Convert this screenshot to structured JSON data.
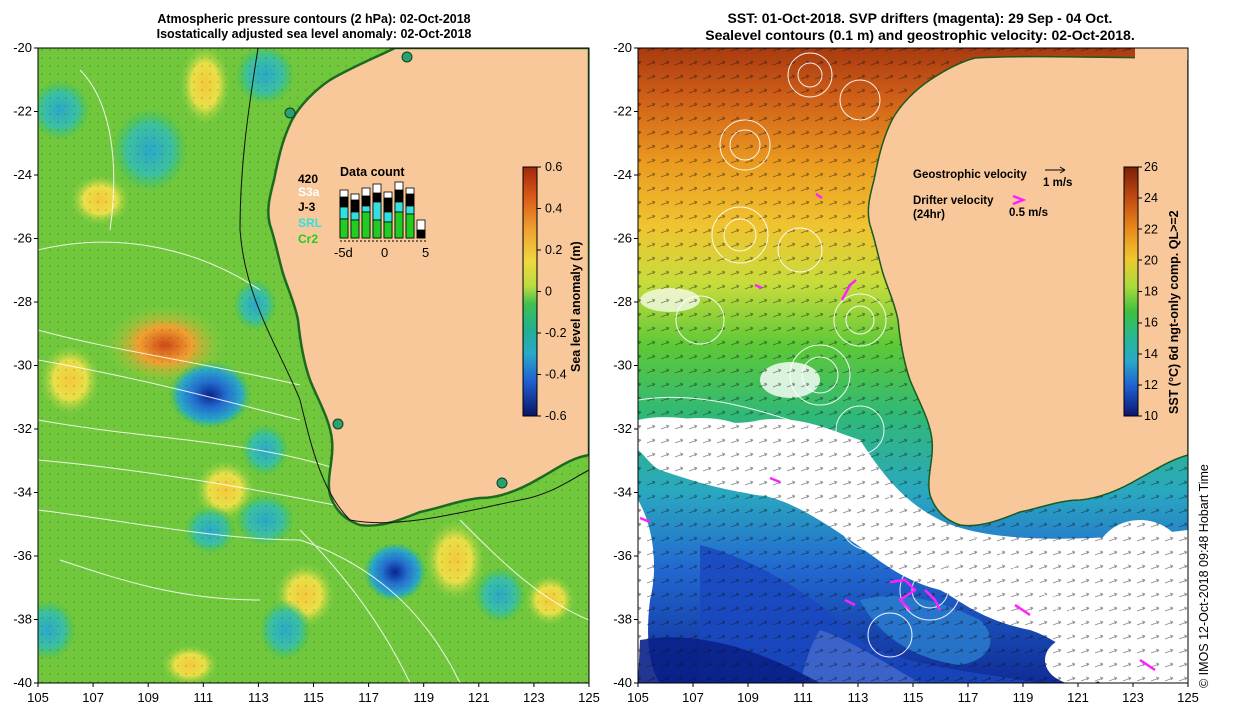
{
  "left_panel": {
    "title_line1": "Atmospheric pressure contours (2 hPa): 02-Oct-2018",
    "title_line2": "Isostatically adjusted sea level anomaly: 02-Oct-2018",
    "colorbar_label": "Sea level anomaly (m)",
    "colorbar_ticks": [
      "0.6",
      "0.4",
      "0.2",
      "0",
      "-0.2",
      "-0.4",
      "-0.6"
    ],
    "colorbar_colors": [
      "#b03010",
      "#e07a20",
      "#f2b33a",
      "#f6e24a",
      "#8fd040",
      "#33c060",
      "#1fb090",
      "#2aa8c8",
      "#2470d0",
      "#1838a8",
      "#0a1870"
    ],
    "data_count": {
      "title": "Data count",
      "legend": [
        {
          "label": "420",
          "color": "#000000"
        },
        {
          "label": "S3a",
          "color": "#ffffff"
        },
        {
          "label": "J-3",
          "color": "#000000"
        },
        {
          "label": "SRL",
          "color": "#33e0e0"
        },
        {
          "label": "Cr2",
          "color": "#22cc22"
        }
      ],
      "axis_ticks": [
        "-5d",
        "0",
        "5"
      ]
    }
  },
  "right_panel": {
    "title_line1": "SST: 01-Oct-2018. SVP drifters (magenta): 29 Sep - 04 Oct.",
    "title_line2": "Sealevel contours (0.1 m) and geostrophic velocity: 02-Oct-2018.",
    "legend_geo": "Geostrophic velocity",
    "legend_geo_scale": "1 m/s",
    "legend_drifter_line1": "Drifter velocity",
    "legend_drifter_line2": "(24hr)",
    "legend_drifter_scale": "0.5 m/s",
    "colorbar_label": "SST (°C) 6d ngt-only comp. QL>=2",
    "colorbar_ticks": [
      "26",
      "24",
      "22",
      "20",
      "18",
      "16",
      "14",
      "12",
      "10"
    ],
    "colorbar_colors": [
      "#8a2a08",
      "#c04810",
      "#e07818",
      "#f0a020",
      "#f2d030",
      "#c8e040",
      "#60cc30",
      "#30b870",
      "#2aa8c0",
      "#2270d0",
      "#1238a8",
      "#0a1878"
    ]
  },
  "map_axes": {
    "lat_ticks": [
      "-20",
      "-22",
      "-24",
      "-26",
      "-28",
      "-30",
      "-32",
      "-34",
      "-36",
      "-38",
      "-40"
    ],
    "lon_ticks": [
      "105",
      "107",
      "109",
      "111",
      "113",
      "115",
      "117",
      "119",
      "121",
      "123",
      "125"
    ]
  },
  "colors": {
    "land": "#f9c89a",
    "sst_cloud": "#ffffff",
    "drifter": "#ff20ff",
    "contour": "#ffffff",
    "station": "#2aa070"
  },
  "credit": "© IMOS 12-Oct-2018 09:48 Hobart Time"
}
